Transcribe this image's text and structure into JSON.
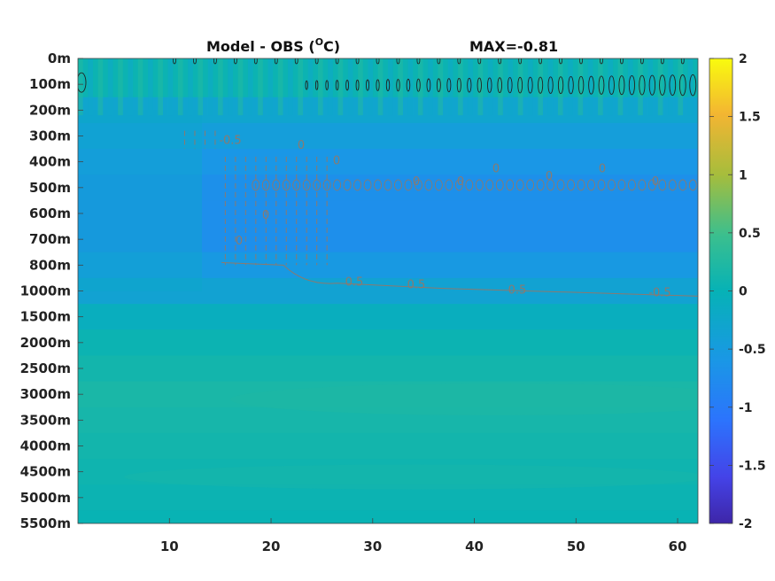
{
  "chart_data": {
    "type": "heatmap",
    "title": "Model - OBS (",
    "title_unit": "O",
    "title_unit_suffix": "C)",
    "annotation": "MAX=-0.81",
    "x_ticks": [
      10,
      20,
      30,
      40,
      50,
      60
    ],
    "x_range": [
      1,
      62
    ],
    "y_tick_labels": [
      "0m",
      "100m",
      "200m",
      "300m",
      "400m",
      "500m",
      "600m",
      "700m",
      "800m",
      "1000m",
      "1500m",
      "2000m",
      "2500m",
      "3000m",
      "3500m",
      "4000m",
      "4500m",
      "5000m",
      "5500m"
    ],
    "colorbar": {
      "ticks": [
        "2",
        "1.5",
        "1",
        "0.5",
        "0",
        "-0.5",
        "-1",
        "-1.5",
        "-2"
      ],
      "range": [
        -2,
        2
      ],
      "colormap": "parula"
    },
    "contour_labels": [
      "0.5",
      "0.5",
      "0.5",
      "-0.5",
      "-0.5",
      "0",
      "0",
      "0",
      "0",
      "0",
      "0",
      "0",
      "0",
      "0",
      "0"
    ],
    "layer_values": [
      0.05,
      0.05,
      -0.3,
      -0.45,
      -0.6,
      -0.7,
      -0.72,
      -0.72,
      -0.55,
      -0.35,
      -0.1,
      0.05,
      0.12,
      0.18,
      0.15,
      0.12,
      0.08,
      0.05,
      0.02
    ],
    "colors": {
      "low": "#3e26a8",
      "mid": "#1fb3b0",
      "high": "#f9fb0e",
      "contour_dark": "#222222",
      "contour_brown": "#8a7a70"
    }
  }
}
